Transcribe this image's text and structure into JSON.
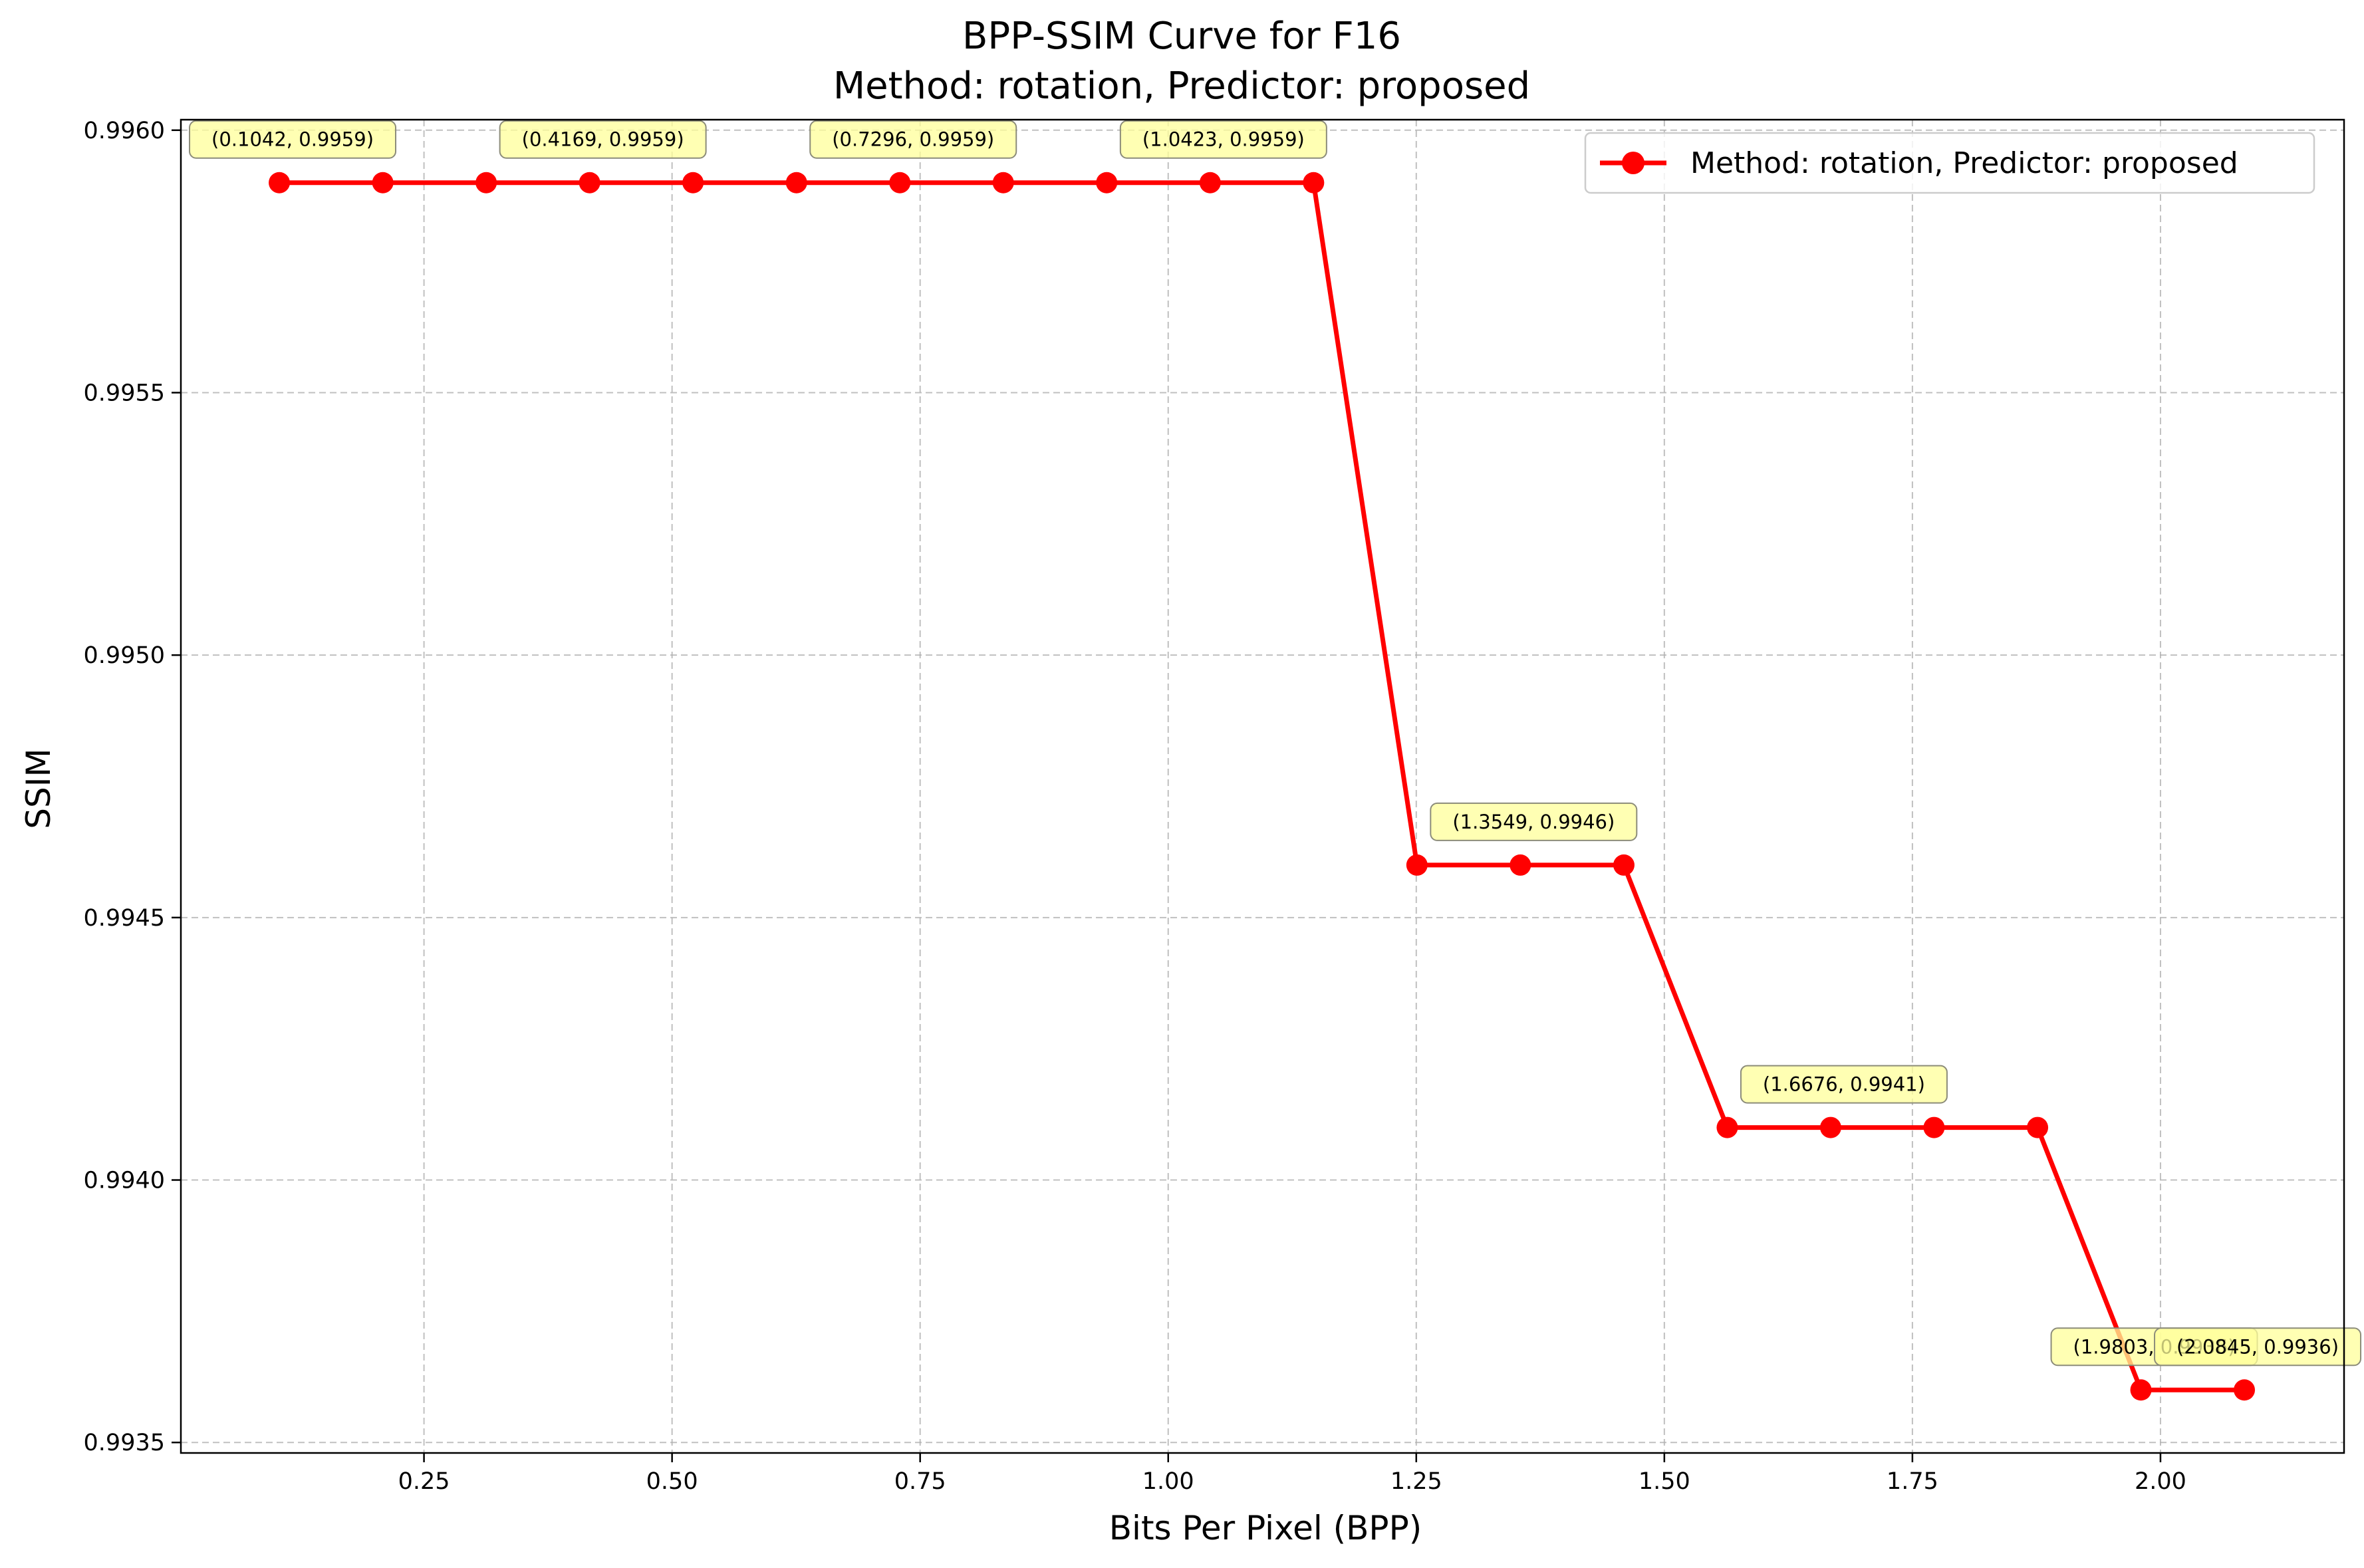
{
  "chart_data": {
    "type": "line",
    "title": "BPP-SSIM Curve for F16",
    "subtitle": "Method: rotation, Predictor: proposed",
    "xlabel": "Bits Per Pixel (BPP)",
    "ylabel": "SSIM",
    "xlim": [
      0.005,
      2.185
    ],
    "ylim": [
      0.99348,
      0.99602
    ],
    "xticks": [
      0.25,
      0.5,
      0.75,
      1.0,
      1.25,
      1.5,
      1.75,
      2.0
    ],
    "xtick_labels": [
      "0.25",
      "0.50",
      "0.75",
      "1.00",
      "1.25",
      "1.50",
      "1.75",
      "2.00"
    ],
    "yticks": [
      0.9935,
      0.994,
      0.9945,
      0.995,
      0.9955,
      0.996
    ],
    "ytick_labels": [
      "0.9935",
      "0.9940",
      "0.9945",
      "0.9950",
      "0.9955",
      "0.9960"
    ],
    "grid": true,
    "legend_position": "top-right",
    "series": [
      {
        "name": "Method: rotation, Predictor: proposed",
        "color": "#ff0000",
        "marker": "circle",
        "x": [
          0.1042,
          0.2085,
          0.3127,
          0.4169,
          0.5211,
          0.6254,
          0.7296,
          0.8338,
          0.938,
          1.0423,
          1.1465,
          1.2507,
          1.3549,
          1.4592,
          1.5634,
          1.6676,
          1.7718,
          1.8761,
          1.9803,
          2.0845
        ],
        "y": [
          0.9959,
          0.9959,
          0.9959,
          0.9959,
          0.9959,
          0.9959,
          0.9959,
          0.9959,
          0.9959,
          0.9959,
          0.9959,
          0.9946,
          0.9946,
          0.9946,
          0.9941,
          0.9941,
          0.9941,
          0.9941,
          0.9936,
          0.9936
        ]
      }
    ],
    "annotations": [
      {
        "x": 0.1042,
        "y": 0.9959,
        "text": "(0.1042, 0.9959)"
      },
      {
        "x": 0.4169,
        "y": 0.9959,
        "text": "(0.4169, 0.9959)"
      },
      {
        "x": 0.7296,
        "y": 0.9959,
        "text": "(0.7296, 0.9959)"
      },
      {
        "x": 1.0423,
        "y": 0.9959,
        "text": "(1.0423, 0.9959)"
      },
      {
        "x": 1.3549,
        "y": 0.9946,
        "text": "(1.3549, 0.9946)"
      },
      {
        "x": 1.6676,
        "y": 0.9941,
        "text": "(1.6676, 0.9941)"
      },
      {
        "x": 1.9803,
        "y": 0.9936,
        "text": "(1.9803, 0.9936)"
      },
      {
        "x": 2.0845,
        "y": 0.9936,
        "text": "(2.0845, 0.9936)"
      }
    ],
    "annotation_box_color": "#ffff99"
  }
}
